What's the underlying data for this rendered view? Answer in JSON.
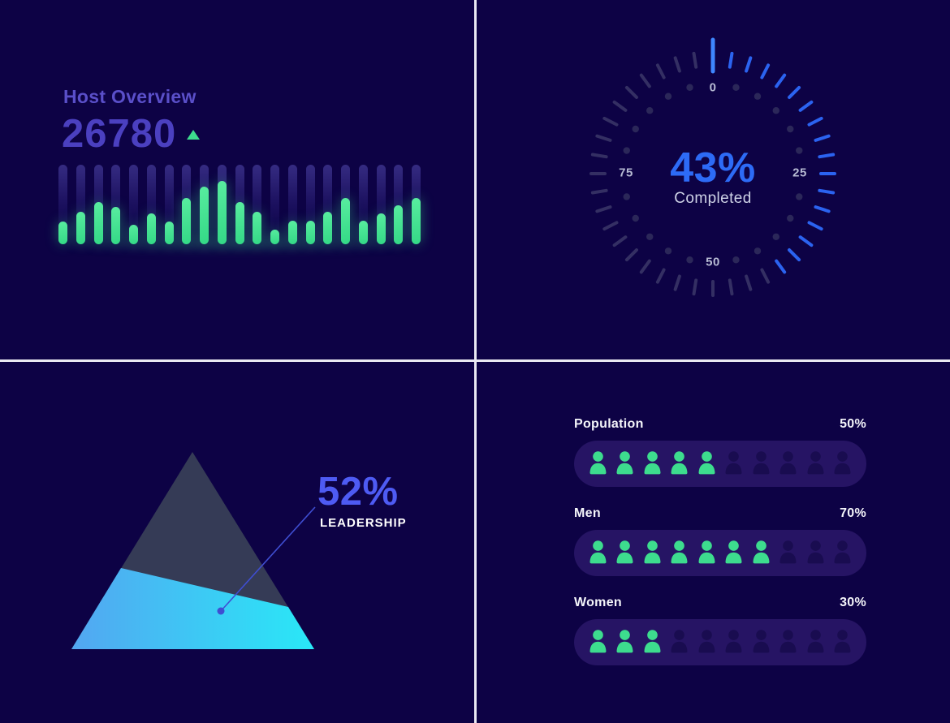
{
  "colors": {
    "background": "#0d0245",
    "divider": "#e9e9f2",
    "accent_blue": "#2d6bf6",
    "accent_green": "#3ddc8e",
    "accent_purple": "#4b40c0",
    "pill_background": "#261464",
    "inactive_icon": "#190c50",
    "inactive_tick": "#3b3869",
    "dot_color": "#2b2759",
    "cyan_gradient_start": "#53a6f1",
    "cyan_gradient_end": "#29e8f7",
    "dark_triangle": "#353b56"
  },
  "panels": {
    "host_overview": {
      "title": "Host Overview",
      "value": "26780",
      "trend": "up"
    },
    "gauge": {},
    "pyramid": {},
    "demographics": {}
  },
  "chart_data": [
    {
      "id": "host-activity-bars",
      "type": "bar",
      "title": "Host Overview",
      "total_value": 26780,
      "unit": "percent-of-track",
      "ylim": [
        0,
        100
      ],
      "grid": false,
      "values": [
        29,
        41,
        53,
        47,
        25,
        39,
        29,
        58,
        72,
        80,
        53,
        41,
        18,
        30,
        30,
        41,
        58,
        30,
        39,
        49,
        58
      ],
      "bar_color": "#3ddc8e",
      "track_color": "#352b82"
    },
    {
      "id": "completion-gauge",
      "type": "gauge",
      "value": 43,
      "value_label": "43%",
      "caption": "Completed",
      "min": 0,
      "max": 100,
      "tick_count": 40,
      "tick_step": 2.5,
      "axis_labels": [
        "0",
        "25",
        "50",
        "75"
      ],
      "active_color": "#2b63f0",
      "main_tick_color": "#3f87ff",
      "inactive_color": "#3b3869",
      "dot_color": "#2b2759"
    },
    {
      "id": "leadership-pyramid",
      "type": "pyramid",
      "highlight_value": "52%",
      "highlight_label": "LEADERSHIP",
      "segments": [
        {
          "name": "LEADERSHIP",
          "value": 52,
          "color": "cyan-gradient"
        },
        {
          "name": "remainder",
          "value": 48,
          "color": "#353b56"
        }
      ]
    },
    {
      "id": "demographics-pictogram",
      "type": "pictogram",
      "icon_total": 10,
      "active_color": "#3ddc8e",
      "inactive_color": "#190c50",
      "rows": [
        {
          "label": "Population",
          "value": "50%",
          "filled": 5
        },
        {
          "label": "Men",
          "value": "70%",
          "filled": 7
        },
        {
          "label": "Women",
          "value": "30%",
          "filled": 3
        }
      ]
    }
  ]
}
